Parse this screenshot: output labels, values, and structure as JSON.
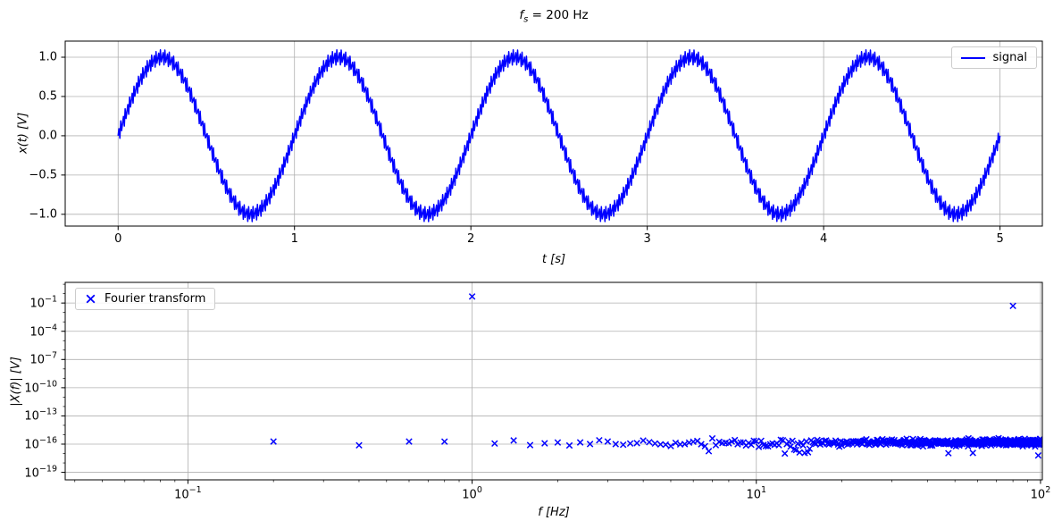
{
  "figure": {
    "title_math": {
      "variable": "f",
      "subscript": "s",
      "rest": " = 200 Hz"
    },
    "background_color": "#ffffff",
    "accent_color": "#0000ff",
    "grid_color": "#b0b0b0",
    "spine_color": "#000000"
  },
  "chart_data": [
    {
      "type": "line",
      "title": "f_s = 200 Hz",
      "xlabel": "t [s]",
      "ylabel": "x(t) [V]",
      "xlim": [
        -0.3,
        5.24
      ],
      "ylim": [
        -1.15,
        1.205
      ],
      "xticks": [
        0,
        1,
        2,
        3,
        4,
        5
      ],
      "xtick_labels": [
        "0",
        "1",
        "2",
        "3",
        "4",
        "5"
      ],
      "yticks": [
        1.0,
        0.5,
        0.0,
        -0.5,
        -1.0
      ],
      "ytick_labels": [
        "1.0",
        "0.5",
        "0.0",
        "−0.5",
        "−1.0"
      ],
      "grid": true,
      "line_color": "#0000ff",
      "legend": {
        "label": "signal",
        "position": "upper right",
        "marker": "line"
      },
      "signal": {
        "sample_rate_hz": 200,
        "duration_s": 5,
        "num_samples": 1001,
        "components": [
          {
            "freq_hz": 1.0,
            "amplitude": 1.0
          },
          {
            "freq_hz": 80.0,
            "amplitude": 0.1
          }
        ]
      }
    },
    {
      "type": "scatter",
      "xlabel": "f [Hz]",
      "ylabel": "|X(f)| [V]",
      "xscale": "log",
      "yscale": "log",
      "xlim": [
        0.037,
        101.5
      ],
      "ylim_exp": [
        -19.8,
        1.2
      ],
      "xtick_exponents": [
        -1,
        0,
        1,
        2
      ],
      "ytick_exponents": [
        -1,
        -4,
        -7,
        -10,
        -13,
        -16,
        -19
      ],
      "grid": true,
      "marker": "x",
      "marker_color": "#0000ff",
      "legend": {
        "label": "Fourier transform",
        "position": "upper left",
        "marker": "x"
      },
      "peaks": [
        {
          "f_hz": 1.0,
          "magnitude": 0.5
        },
        {
          "f_hz": 80.0,
          "magnitude": 0.05
        }
      ],
      "noise_floor": {
        "f_start_hz": 0.2,
        "f_step_hz": 0.2,
        "f_end_hz": 100,
        "median_level": 1.3e-16,
        "spread_decades": 0.35,
        "dip_region_hz": [
          12.5,
          15.5
        ],
        "dip_min_level": 1e-17
      }
    }
  ]
}
